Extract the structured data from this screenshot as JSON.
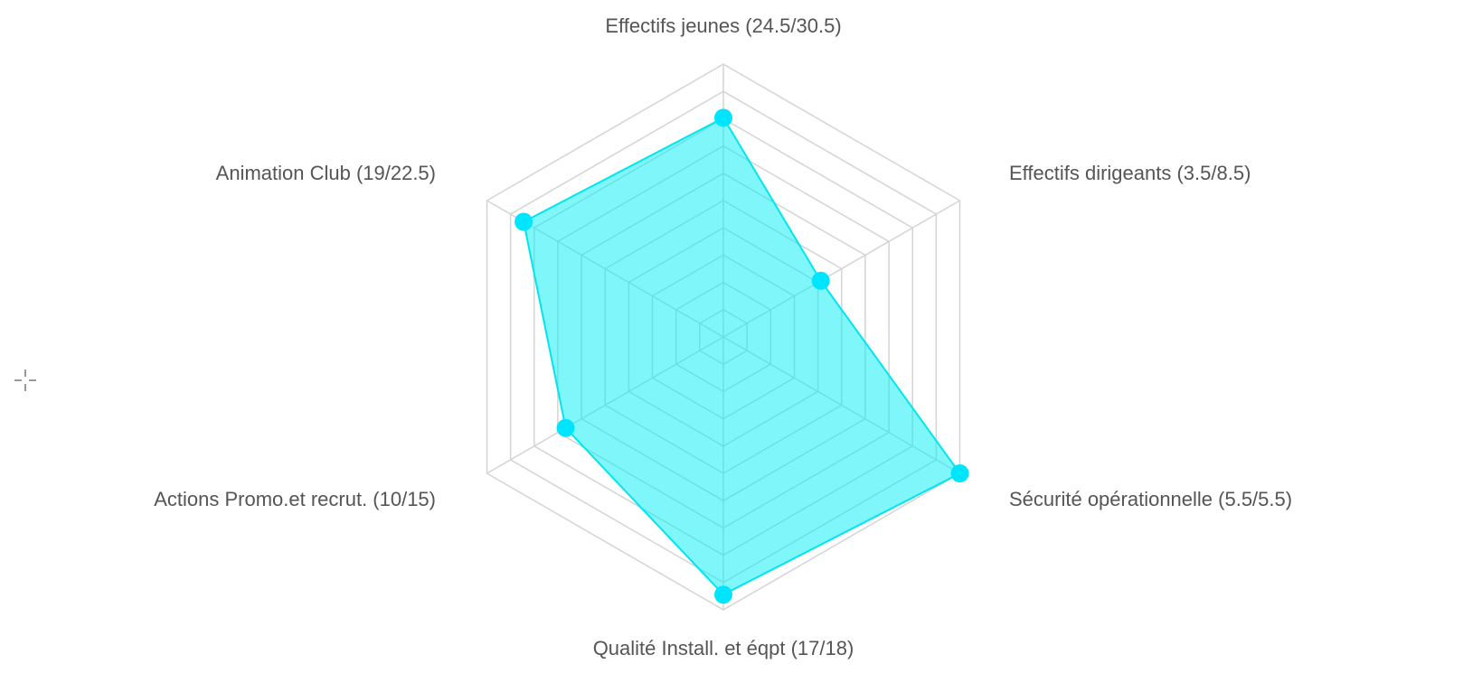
{
  "chart_data": {
    "type": "radar",
    "title": "",
    "levels": 10,
    "axes": [
      {
        "label": "Effectifs jeunes (24.5/30.5)",
        "value": 24.5,
        "max": 30.5
      },
      {
        "label": "Effectifs dirigeants (3.5/8.5)",
        "value": 3.5,
        "max": 8.5
      },
      {
        "label": "Sécurité opérationnelle (5.5/5.5)",
        "value": 5.5,
        "max": 5.5
      },
      {
        "label": "Qualité Install. et éqpt (17/18)",
        "value": 17,
        "max": 18
      },
      {
        "label": "Actions Promo.et recrut. (10/15)",
        "value": 10,
        "max": 15
      },
      {
        "label": "Animation Club (19/22.5)",
        "value": 19,
        "max": 22.5
      }
    ],
    "series": [
      {
        "values": [
          24.5,
          3.5,
          5.5,
          17,
          10,
          19
        ]
      }
    ],
    "colors": {
      "fill": "#00f0f5",
      "stroke": "#00e5ee",
      "point": "#00e5ff",
      "grid": "#d4d4d4",
      "label": "#555555"
    }
  }
}
